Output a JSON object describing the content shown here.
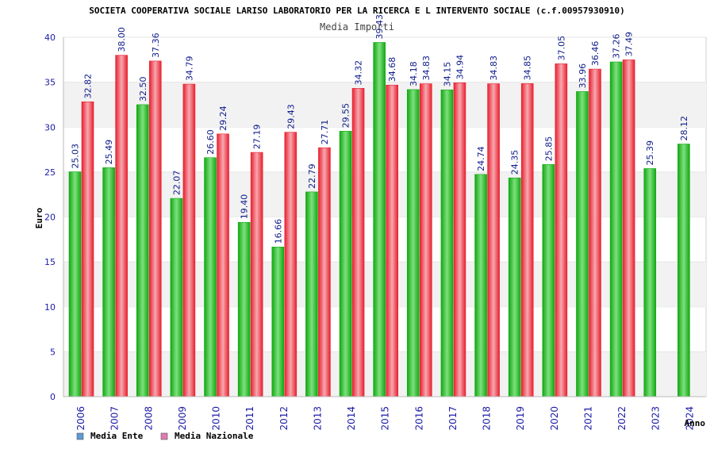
{
  "chart_data": {
    "type": "bar",
    "title": "SOCIETA COOPERATIVA SOCIALE LARISO LABORATORIO PER LA RICERCA E L INTERVENTO SOCIALE (c.f.00957930910)",
    "subtitle": "Media Importi",
    "xlabel": "Anno",
    "ylabel": "Euro",
    "ylim": [
      0,
      40
    ],
    "yticks": [
      0,
      5,
      10,
      15,
      20,
      25,
      30,
      35,
      40
    ],
    "grid": "horizontal bands",
    "categories": [
      "2006",
      "2007",
      "2008",
      "2009",
      "2010",
      "2011",
      "2012",
      "2013",
      "2014",
      "2015",
      "2016",
      "2017",
      "2018",
      "2019",
      "2020",
      "2021",
      "2022",
      "2023",
      "2024"
    ],
    "series": [
      {
        "name": "Media Ente",
        "legend_color": "#5b9bd5",
        "bar_color": "#12a812",
        "values": [
          25.03,
          25.49,
          32.5,
          22.07,
          26.6,
          19.4,
          16.66,
          22.79,
          29.55,
          39.43,
          34.18,
          34.15,
          24.74,
          24.35,
          25.85,
          33.96,
          37.26,
          25.39,
          28.12
        ],
        "labels": [
          "25.03",
          "25.49",
          "32.50",
          "22.07",
          "26.60",
          "19.40",
          "16.66",
          "22.79",
          "29.55",
          "39.43",
          "34.18",
          "34.15",
          "24.74",
          "24.35",
          "25.85",
          "33.96",
          "37.26",
          "25.39",
          "28.12"
        ]
      },
      {
        "name": "Media Nazionale",
        "legend_color": "#e07ab0",
        "bar_color": "#e8202e",
        "values": [
          32.82,
          38.0,
          37.36,
          34.79,
          29.24,
          27.19,
          29.43,
          27.71,
          34.32,
          34.68,
          34.83,
          34.94,
          34.83,
          34.85,
          37.05,
          36.46,
          37.49,
          null,
          null
        ],
        "labels": [
          "32.82",
          "38.00",
          "37.36",
          "34.79",
          "29.24",
          "27.19",
          "29.43",
          "27.71",
          "34.32",
          "34.68",
          "34.83",
          "34.94",
          "34.83",
          "34.85",
          "37.05",
          "36.46",
          "37.49",
          null,
          null
        ]
      }
    ],
    "legend_position": "bottom-left"
  }
}
